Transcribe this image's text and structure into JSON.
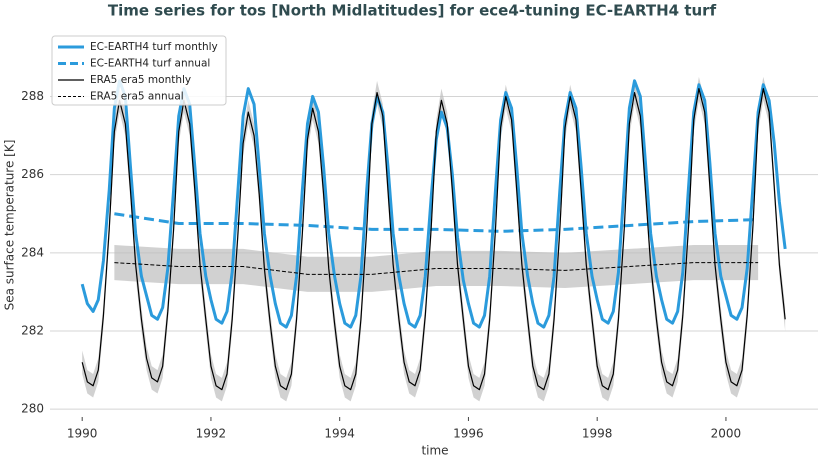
{
  "chart_data": {
    "type": "line",
    "title": "Time series for tos [North Midlatitudes] for ece4-tuning EC-EARTH4 turf",
    "xlabel": "time",
    "ylabel": "Sea surface temperature [K]",
    "x": [
      1990,
      1990.08,
      1990.17,
      1990.25,
      1990.33,
      1990.42,
      1990.5,
      1990.58,
      1990.67,
      1990.75,
      1990.83,
      1990.92,
      1991,
      1991.08,
      1991.17,
      1991.25,
      1991.33,
      1991.42,
      1991.5,
      1991.58,
      1991.67,
      1991.75,
      1991.83,
      1991.92,
      1992,
      1992.08,
      1992.17,
      1992.25,
      1992.33,
      1992.42,
      1992.5,
      1992.58,
      1992.67,
      1992.75,
      1992.83,
      1992.92,
      1993,
      1993.08,
      1993.17,
      1993.25,
      1993.33,
      1993.42,
      1993.5,
      1993.58,
      1993.67,
      1993.75,
      1993.83,
      1993.92,
      1994,
      1994.08,
      1994.17,
      1994.25,
      1994.33,
      1994.42,
      1994.5,
      1994.58,
      1994.67,
      1994.75,
      1994.83,
      1994.92,
      1995,
      1995.08,
      1995.17,
      1995.25,
      1995.33,
      1995.42,
      1995.5,
      1995.58,
      1995.67,
      1995.75,
      1995.83,
      1995.92,
      1996,
      1996.08,
      1996.17,
      1996.25,
      1996.33,
      1996.42,
      1996.5,
      1996.58,
      1996.67,
      1996.75,
      1996.83,
      1996.92,
      1997,
      1997.08,
      1997.17,
      1997.25,
      1997.33,
      1997.42,
      1997.5,
      1997.58,
      1997.67,
      1997.75,
      1997.83,
      1997.92,
      1998,
      1998.08,
      1998.17,
      1998.25,
      1998.33,
      1998.42,
      1998.5,
      1998.58,
      1998.67,
      1998.75,
      1998.83,
      1998.92,
      1999,
      1999.08,
      1999.17,
      1999.25,
      1999.33,
      1999.42,
      1999.5,
      1999.58,
      1999.67,
      1999.75,
      1999.83,
      1999.92,
      2000,
      2000.08,
      2000.17,
      2000.25,
      2000.33,
      2000.42,
      2000.5,
      2000.58,
      2000.67,
      2000.75,
      2000.83,
      2000.92
    ],
    "series": [
      {
        "name": "EC-EARTH4 turf monthly",
        "color": "#2b9bdc",
        "linestyle": "solid",
        "values": [
          283.2,
          282.7,
          282.5,
          282.8,
          283.8,
          285.6,
          287.7,
          288.4,
          288.0,
          286.2,
          284.5,
          283.4,
          282.9,
          282.4,
          282.3,
          282.6,
          283.6,
          285.6,
          287.5,
          288.2,
          287.8,
          286.2,
          284.5,
          283.4,
          282.8,
          282.3,
          282.2,
          282.5,
          283.5,
          285.6,
          287.5,
          288.2,
          287.8,
          286.2,
          284.5,
          283.4,
          282.7,
          282.2,
          282.1,
          282.4,
          283.4,
          285.6,
          287.3,
          288.0,
          287.6,
          286.2,
          284.5,
          283.4,
          282.7,
          282.2,
          282.1,
          282.4,
          283.4,
          285.6,
          287.3,
          288.0,
          287.6,
          286.2,
          284.5,
          283.4,
          282.7,
          282.2,
          282.1,
          282.4,
          283.4,
          285.4,
          286.9,
          287.6,
          287.2,
          286.0,
          284.4,
          283.3,
          282.7,
          282.2,
          282.1,
          282.4,
          283.4,
          285.6,
          287.4,
          288.1,
          287.7,
          286.2,
          284.5,
          283.4,
          282.7,
          282.2,
          282.1,
          282.4,
          283.4,
          285.6,
          287.4,
          288.1,
          287.7,
          286.2,
          284.5,
          283.4,
          282.8,
          282.3,
          282.2,
          282.5,
          283.5,
          285.7,
          287.7,
          288.4,
          288.0,
          286.3,
          284.5,
          283.4,
          282.8,
          282.3,
          282.2,
          282.5,
          283.5,
          285.7,
          287.6,
          288.3,
          287.9,
          286.3,
          284.5,
          283.4,
          282.9,
          282.4,
          282.3,
          282.6,
          283.6,
          285.7,
          287.6,
          288.3,
          287.9,
          286.8,
          285.3,
          284.1
        ]
      },
      {
        "name": "EC-EARTH4 turf annual",
        "color": "#2b9bdc",
        "linestyle": "dashed",
        "x": [
          1990.5,
          1991.5,
          1992.5,
          1993.5,
          1994.5,
          1995.5,
          1996.5,
          1997.5,
          1998.5,
          1999.5,
          2000.5
        ],
        "values": [
          285.0,
          284.75,
          284.75,
          284.7,
          284.6,
          284.6,
          284.55,
          284.6,
          284.7,
          284.8,
          284.85
        ]
      },
      {
        "name": "ERA5 era5 monthly",
        "color": "#000000",
        "linestyle": "solid",
        "spread": 0.3,
        "values": [
          281.2,
          280.7,
          280.6,
          281.0,
          282.4,
          284.6,
          287.1,
          287.9,
          287.3,
          285.6,
          283.7,
          282.3,
          281.3,
          280.8,
          280.7,
          281.1,
          282.5,
          284.6,
          287.1,
          287.9,
          287.3,
          285.6,
          283.7,
          282.3,
          281.1,
          280.6,
          280.5,
          280.9,
          282.3,
          284.5,
          286.8,
          287.6,
          287.0,
          285.5,
          283.6,
          282.2,
          281.1,
          280.6,
          280.5,
          280.9,
          282.3,
          284.5,
          286.9,
          287.7,
          287.1,
          285.5,
          283.6,
          282.2,
          281.1,
          280.6,
          280.5,
          280.9,
          282.3,
          284.6,
          287.3,
          288.1,
          287.5,
          285.6,
          283.7,
          282.3,
          281.2,
          280.7,
          280.6,
          281.0,
          282.4,
          284.6,
          287.1,
          287.9,
          287.3,
          285.6,
          283.7,
          282.3,
          281.1,
          280.6,
          280.5,
          280.9,
          282.3,
          284.6,
          287.2,
          288.0,
          287.4,
          285.6,
          283.7,
          282.3,
          281.1,
          280.6,
          280.5,
          280.9,
          282.3,
          284.6,
          287.2,
          288.0,
          287.4,
          285.6,
          283.7,
          282.3,
          281.1,
          280.6,
          280.5,
          280.9,
          282.3,
          284.6,
          287.3,
          288.1,
          287.5,
          285.6,
          283.7,
          282.3,
          281.2,
          280.7,
          280.6,
          281.0,
          282.4,
          284.7,
          287.4,
          288.2,
          287.6,
          285.7,
          283.7,
          282.3,
          281.2,
          280.7,
          280.6,
          281.0,
          282.4,
          284.7,
          287.4,
          288.2,
          287.6,
          285.7,
          283.7,
          282.3
        ]
      },
      {
        "name": "ERA5 era5 annual",
        "color": "#000000",
        "linestyle": "dashed",
        "spread": 0.45,
        "x": [
          1990.5,
          1991.5,
          1992.5,
          1993.5,
          1994.5,
          1995.5,
          1996.5,
          1997.5,
          1998.5,
          1999.5,
          2000.5
        ],
        "values": [
          283.75,
          283.65,
          283.65,
          283.45,
          283.45,
          283.6,
          283.6,
          283.55,
          283.65,
          283.75,
          283.75
        ]
      }
    ],
    "xlim": [
      1989.5,
      2001.43
    ],
    "ylim": [
      279.8,
      289.7
    ],
    "xticks": [
      1990,
      1992,
      1994,
      1996,
      1998,
      2000
    ],
    "yticks": [
      280,
      282,
      284,
      286,
      288
    ],
    "grid": true,
    "legend": "upper left"
  }
}
